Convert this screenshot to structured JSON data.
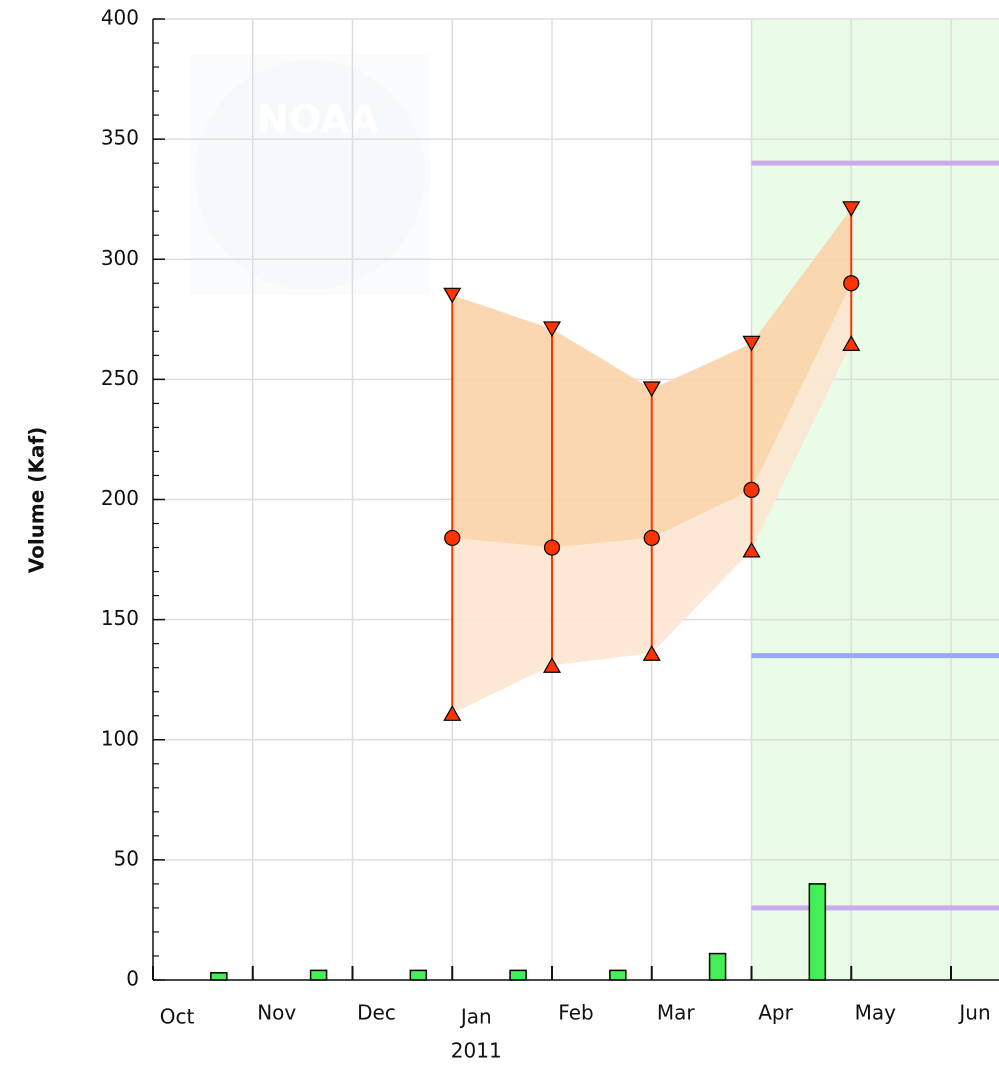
{
  "chart_data": {
    "type": "bar",
    "y_label": "Volume (Kaf)",
    "categories": [
      "Oct",
      "Nov",
      "Dec",
      "Jan",
      "Feb",
      "Mar",
      "Apr",
      "May",
      "Jun"
    ],
    "x_sublabels": [
      null,
      null,
      null,
      "2011",
      null,
      null,
      null,
      null,
      null
    ],
    "ylim": [
      0,
      400
    ],
    "yticks": [
      0,
      50,
      100,
      150,
      200,
      250,
      300,
      350,
      400
    ],
    "grid": true,
    "watermark": "NOAA",
    "observed": {
      "color": "#44ee55",
      "values": [
        3,
        4,
        4,
        4,
        4,
        11,
        40,
        null,
        null
      ]
    },
    "forecast": {
      "at": [
        "Jan",
        "Feb",
        "Mar",
        "Apr",
        "May"
      ],
      "max": [
        285,
        271,
        246,
        265,
        321
      ],
      "median": [
        184,
        180,
        184,
        204,
        290
      ],
      "min": [
        111,
        131,
        136,
        179,
        265
      ],
      "color": "#ff3300",
      "upper_band_color": "#fbd3a8",
      "lower_band_color": "#fde6d0"
    },
    "highlight": {
      "from": "Apr",
      "color": "#e8fce8"
    },
    "reference_lines": [
      {
        "value": 340,
        "color": "#ccaaee"
      },
      {
        "value": 135,
        "color": "#99aaee"
      },
      {
        "value": 30,
        "color": "#ccaaee"
      }
    ]
  }
}
